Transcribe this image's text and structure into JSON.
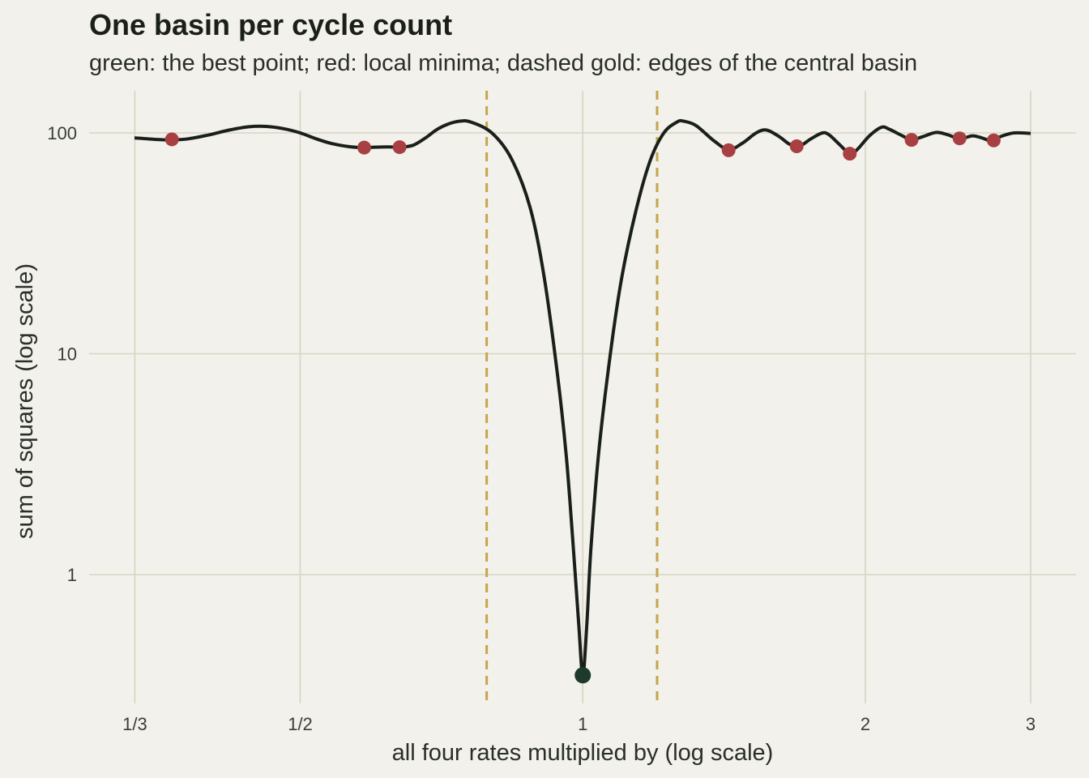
{
  "chart_data": {
    "type": "line",
    "title": "One basin per cycle count",
    "subtitle": "green: the best point; red: local minima; dashed gold: edges of the central basin",
    "xlabel": "all four rates multiplied by (log scale)",
    "ylabel": "sum of squares (log scale)",
    "x_scale": "log",
    "y_scale": "log",
    "xlim": [
      0.333,
      3.0
    ],
    "ylim": [
      0.28,
      145
    ],
    "x_ticks": [
      {
        "value": 0.3333,
        "label": "1/3"
      },
      {
        "value": 0.5,
        "label": "1/2"
      },
      {
        "value": 1,
        "label": "1"
      },
      {
        "value": 2,
        "label": "2"
      },
      {
        "value": 3,
        "label": "3"
      }
    ],
    "y_ticks": [
      {
        "value": 1,
        "label": "1"
      },
      {
        "value": 10,
        "label": "10"
      },
      {
        "value": 100,
        "label": "100"
      }
    ],
    "grid": true,
    "colors": {
      "background": "#f2f1eb",
      "grid": "#d6d5c3",
      "curve": "#1a1f1a",
      "local_minima": "#a83f42",
      "best_point": "#1e3a2c",
      "basin_edges": "#c6a649"
    },
    "series": [
      {
        "points": [
          [
            0.333,
            95
          ],
          [
            0.35,
            93.5
          ],
          [
            0.365,
            93
          ],
          [
            0.38,
            94
          ],
          [
            0.4,
            98
          ],
          [
            0.42,
            103
          ],
          [
            0.44,
            106.5
          ],
          [
            0.46,
            107
          ],
          [
            0.48,
            104.5
          ],
          [
            0.5,
            100
          ],
          [
            0.52,
            94
          ],
          [
            0.54,
            89.5
          ],
          [
            0.56,
            87
          ],
          [
            0.58,
            85.8
          ],
          [
            0.6,
            86.2
          ],
          [
            0.62,
            86.5
          ],
          [
            0.64,
            86.2
          ],
          [
            0.66,
            88
          ],
          [
            0.68,
            95
          ],
          [
            0.7,
            104
          ],
          [
            0.72,
            110
          ],
          [
            0.74,
            113
          ],
          [
            0.76,
            112
          ],
          [
            0.8,
            100
          ],
          [
            0.84,
            76
          ],
          [
            0.88,
            45
          ],
          [
            0.91,
            22
          ],
          [
            0.94,
            8
          ],
          [
            0.96,
            3.5
          ],
          [
            0.975,
            1.5
          ],
          [
            0.99,
            0.6
          ],
          [
            1.0,
            0.35
          ],
          [
            1.01,
            0.6
          ],
          [
            1.02,
            1.3
          ],
          [
            1.04,
            3.6
          ],
          [
            1.07,
            10
          ],
          [
            1.1,
            22
          ],
          [
            1.14,
            45
          ],
          [
            1.18,
            75
          ],
          [
            1.22,
            100
          ],
          [
            1.26,
            112
          ],
          [
            1.28,
            113
          ],
          [
            1.32,
            108
          ],
          [
            1.38,
            92
          ],
          [
            1.43,
            84
          ],
          [
            1.48,
            90
          ],
          [
            1.53,
            100
          ],
          [
            1.57,
            103
          ],
          [
            1.62,
            96
          ],
          [
            1.66,
            89
          ],
          [
            1.7,
            87
          ],
          [
            1.75,
            94
          ],
          [
            1.8,
            100
          ],
          [
            1.83,
            98
          ],
          [
            1.88,
            88
          ],
          [
            1.925,
            80.5
          ],
          [
            1.96,
            84
          ],
          [
            2.02,
            97
          ],
          [
            2.08,
            106
          ],
          [
            2.12,
            104
          ],
          [
            2.19,
            97
          ],
          [
            2.24,
            93
          ],
          [
            2.3,
            96
          ],
          [
            2.38,
            100.5
          ],
          [
            2.45,
            98
          ],
          [
            2.52,
            94
          ],
          [
            2.6,
            97
          ],
          [
            2.66,
            95
          ],
          [
            2.72,
            92.5
          ],
          [
            2.8,
            97
          ],
          [
            2.88,
            100
          ],
          [
            3.0,
            99.5
          ]
        ]
      }
    ],
    "local_minima": [
      {
        "x": 0.365,
        "y": 93.5
      },
      {
        "x": 0.585,
        "y": 85.8
      },
      {
        "x": 0.638,
        "y": 86.2
      },
      {
        "x": 1.43,
        "y": 83.5
      },
      {
        "x": 1.69,
        "y": 87
      },
      {
        "x": 1.925,
        "y": 80.5
      },
      {
        "x": 2.24,
        "y": 93
      },
      {
        "x": 2.52,
        "y": 94.5
      },
      {
        "x": 2.74,
        "y": 92.5
      }
    ],
    "best_point": {
      "x": 1.0,
      "y": 0.35
    },
    "basin_edges": [
      0.79,
      1.2
    ]
  }
}
